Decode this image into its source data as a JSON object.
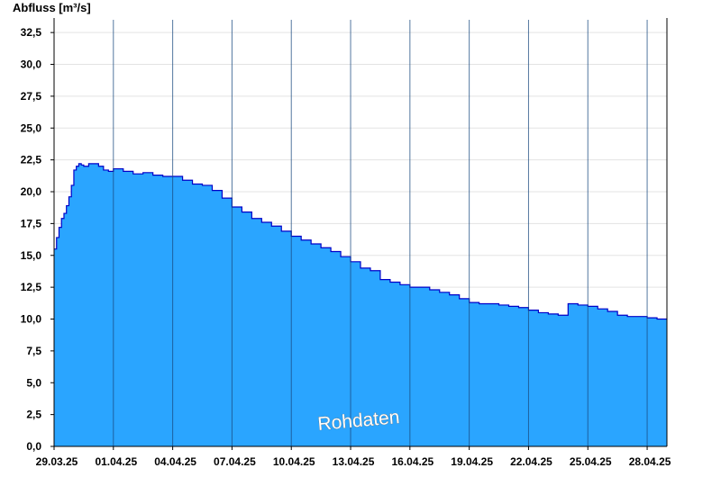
{
  "chart_data": {
    "type": "area",
    "ylabel": "Abfluss [m³/s]",
    "ylim": [
      0,
      33.5
    ],
    "yticks": [
      "0,0",
      "2,5",
      "5,0",
      "7,5",
      "10,0",
      "12,5",
      "15,0",
      "17,5",
      "20,0",
      "22,5",
      "25,0",
      "27,5",
      "30,0",
      "32,5"
    ],
    "xlim": [
      "2025-03-29",
      "2025-04-29"
    ],
    "xticks": [
      {
        "date": "2025-03-29",
        "label": "29.03.25"
      },
      {
        "date": "2025-04-01",
        "label": "01.04.25"
      },
      {
        "date": "2025-04-04",
        "label": "04.04.25"
      },
      {
        "date": "2025-04-07",
        "label": "07.04.25"
      },
      {
        "date": "2025-04-10",
        "label": "10.04.25"
      },
      {
        "date": "2025-04-13",
        "label": "13.04.25"
      },
      {
        "date": "2025-04-16",
        "label": "16.04.25"
      },
      {
        "date": "2025-04-19",
        "label": "19.04.25"
      },
      {
        "date": "2025-04-22",
        "label": "22.04.25"
      },
      {
        "date": "2025-04-25",
        "label": "25.04.25"
      },
      {
        "date": "2025-04-28",
        "label": "28.04.25"
      }
    ],
    "grid": true,
    "fill_color": "#2aa5ff",
    "line_color": "#0000c8",
    "annotation": "Rohdaten",
    "series": [
      {
        "x": [
          "2025-03-29T00:00",
          "2025-03-29T03:00",
          "2025-03-29T06:00",
          "2025-03-29T09:00",
          "2025-03-29T12:00",
          "2025-03-29T15:00",
          "2025-03-29T18:00",
          "2025-03-29T21:00",
          "2025-03-30T00:00",
          "2025-03-30T03:00",
          "2025-03-30T06:00",
          "2025-03-30T09:00",
          "2025-03-30T12:00",
          "2025-03-30T18:00",
          "2025-03-31T00:00",
          "2025-03-31T06:00",
          "2025-03-31T12:00",
          "2025-03-31T18:00",
          "2025-04-01T00:00",
          "2025-04-01T12:00",
          "2025-04-02T00:00",
          "2025-04-02T12:00",
          "2025-04-03T00:00",
          "2025-04-03T12:00",
          "2025-04-04T00:00",
          "2025-04-04T12:00",
          "2025-04-05T00:00",
          "2025-04-05T12:00",
          "2025-04-06T00:00",
          "2025-04-06T12:00",
          "2025-04-07T00:00",
          "2025-04-07T12:00",
          "2025-04-08T00:00",
          "2025-04-08T12:00",
          "2025-04-09T00:00",
          "2025-04-09T12:00",
          "2025-04-10T00:00",
          "2025-04-10T12:00",
          "2025-04-11T00:00",
          "2025-04-11T12:00",
          "2025-04-12T00:00",
          "2025-04-12T12:00",
          "2025-04-13T00:00",
          "2025-04-13T12:00",
          "2025-04-14T00:00",
          "2025-04-14T12:00",
          "2025-04-15T00:00",
          "2025-04-15T12:00",
          "2025-04-16T00:00",
          "2025-04-16T12:00",
          "2025-04-17T00:00",
          "2025-04-17T12:00",
          "2025-04-18T00:00",
          "2025-04-18T12:00",
          "2025-04-19T00:00",
          "2025-04-19T12:00",
          "2025-04-20T00:00",
          "2025-04-20T12:00",
          "2025-04-21T00:00",
          "2025-04-21T12:00",
          "2025-04-22T00:00",
          "2025-04-22T12:00",
          "2025-04-23T00:00",
          "2025-04-23T12:00",
          "2025-04-24T00:00",
          "2025-04-24T12:00",
          "2025-04-25T00:00",
          "2025-04-25T12:00",
          "2025-04-26T00:00",
          "2025-04-26T12:00",
          "2025-04-27T00:00",
          "2025-04-27T12:00",
          "2025-04-28T00:00",
          "2025-04-28T12:00",
          "2025-04-29T00:00"
        ],
        "values": [
          15.5,
          16.4,
          17.2,
          17.9,
          18.3,
          18.9,
          19.6,
          20.5,
          21.7,
          22.0,
          22.2,
          22.1,
          22.0,
          22.2,
          22.2,
          22.0,
          21.7,
          21.6,
          21.8,
          21.6,
          21.4,
          21.5,
          21.3,
          21.2,
          21.2,
          20.9,
          20.6,
          20.5,
          20.1,
          19.5,
          18.8,
          18.4,
          17.9,
          17.6,
          17.3,
          16.9,
          16.5,
          16.2,
          15.9,
          15.6,
          15.3,
          14.9,
          14.5,
          14.0,
          13.8,
          13.1,
          12.9,
          12.7,
          12.5,
          12.5,
          12.3,
          12.1,
          11.9,
          11.6,
          11.3,
          11.2,
          11.2,
          11.1,
          11.0,
          10.9,
          10.7,
          10.5,
          10.4,
          10.3,
          11.2,
          11.1,
          11.0,
          10.8,
          10.6,
          10.3,
          10.2,
          10.2,
          10.1,
          10.0,
          10.0
        ]
      }
    ]
  }
}
